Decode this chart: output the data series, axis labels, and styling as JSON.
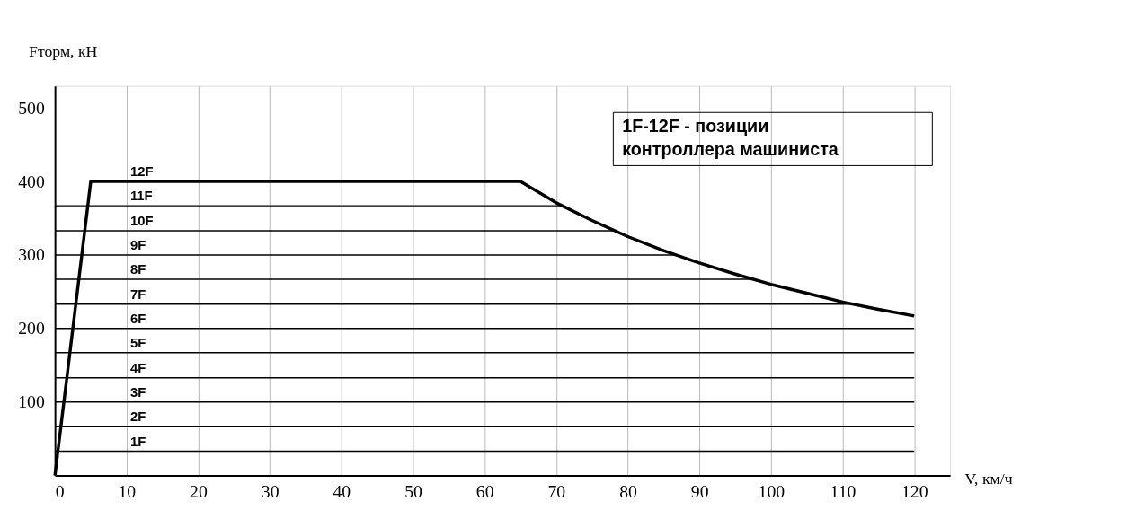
{
  "chart_data": {
    "type": "line",
    "xlabel": "V, км/ч",
    "ylabel": "Fторм, кН",
    "xlim": [
      0,
      125
    ],
    "ylim": [
      0,
      530
    ],
    "xticks": [
      0,
      10,
      20,
      30,
      40,
      50,
      60,
      70,
      80,
      90,
      100,
      110,
      120
    ],
    "yticks": [
      100,
      200,
      300,
      400,
      500
    ],
    "grid": "x",
    "marker": "none",
    "line_style": "solid",
    "annotations": [
      "1F-12F - позиции\nконтроллера машиниста"
    ],
    "series": [
      {
        "name": "12F",
        "color": "#000000",
        "x": [
          0,
          5,
          65,
          70,
          75,
          80,
          85,
          90,
          95,
          100,
          105,
          110,
          115,
          120
        ],
        "values": [
          0,
          400,
          400,
          371,
          347,
          325,
          306,
          289,
          274,
          260,
          248,
          236,
          226,
          217
        ]
      },
      {
        "name": "1F",
        "color": "#000000",
        "x": [
          0,
          120
        ],
        "values": [
          33,
          33
        ]
      },
      {
        "name": "2F",
        "color": "#000000",
        "x": [
          0,
          120
        ],
        "values": [
          67,
          67
        ]
      },
      {
        "name": "3F",
        "color": "#000000",
        "x": [
          0,
          120
        ],
        "values": [
          100,
          100
        ]
      },
      {
        "name": "4F",
        "color": "#000000",
        "x": [
          0,
          120
        ],
        "values": [
          133,
          133
        ]
      },
      {
        "name": "5F",
        "color": "#000000",
        "x": [
          0,
          120
        ],
        "values": [
          167,
          167
        ]
      },
      {
        "name": "6F",
        "color": "#000000",
        "x": [
          0,
          120
        ],
        "values": [
          200,
          200
        ]
      },
      {
        "name": "7F",
        "color": "#000000",
        "x": [
          0,
          111
        ],
        "values": [
          233,
          233
        ]
      },
      {
        "name": "8F",
        "color": "#000000",
        "x": [
          0,
          97
        ],
        "values": [
          267,
          267
        ]
      },
      {
        "name": "9F",
        "color": "#000000",
        "x": [
          0,
          87
        ],
        "values": [
          300,
          300
        ]
      },
      {
        "name": "10F",
        "color": "#000000",
        "x": [
          0,
          78
        ],
        "values": [
          333,
          333
        ]
      },
      {
        "name": "11F",
        "color": "#000000",
        "x": [
          0,
          71
        ],
        "values": [
          367,
          367
        ]
      }
    ]
  }
}
